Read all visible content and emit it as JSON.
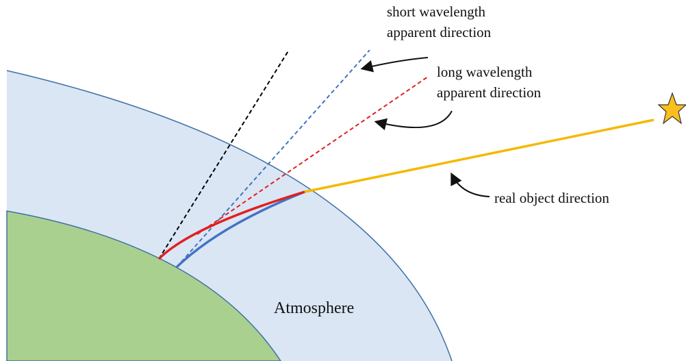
{
  "labels": {
    "short_wavelength": [
      "short wavelength",
      "apparent direction"
    ],
    "long_wavelength": [
      "long wavelength",
      "apparent direction"
    ],
    "real_direction": "real object direction",
    "atmosphere": "Atmosphere"
  }
}
